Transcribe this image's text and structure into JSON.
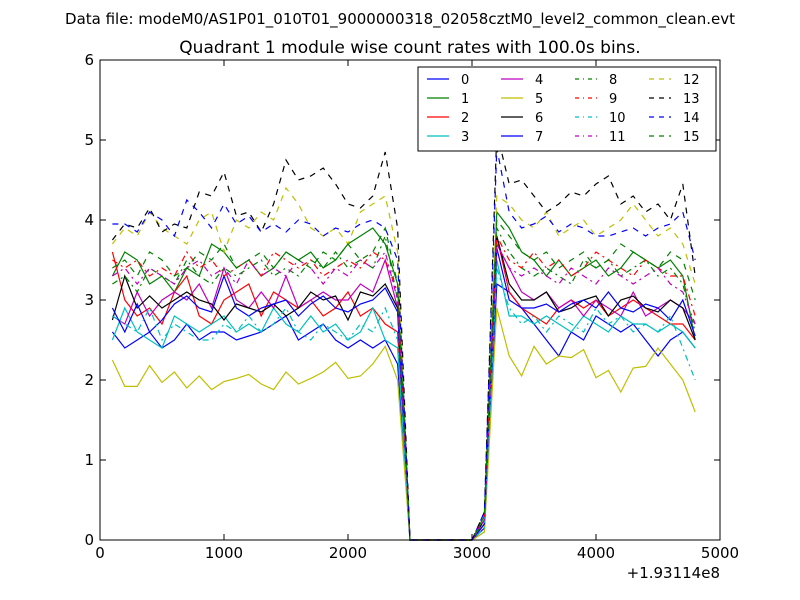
{
  "page": {
    "suptitle": "Data file: modeM0/AS1P01_010T01_9000000318_02058cztM0_level2_common_clean.evt"
  },
  "chart_data": {
    "type": "line",
    "title": "Quadrant 1 module wise count rates with 100.0s bins.",
    "xlabel": "",
    "ylabel": "",
    "x_offset_label": "+1.93114e8",
    "xlim": [
      0,
      5000
    ],
    "ylim": [
      0,
      6
    ],
    "xticks": [
      0,
      1000,
      2000,
      3000,
      4000,
      5000
    ],
    "yticks": [
      0,
      1,
      2,
      3,
      4,
      5,
      6
    ],
    "grid": false,
    "legend_position": "top-right",
    "x": [
      100,
      200,
      300,
      400,
      500,
      600,
      700,
      800,
      900,
      1000,
      1100,
      1200,
      1300,
      1400,
      1500,
      1600,
      1700,
      1800,
      1900,
      2000,
      2100,
      2200,
      2300,
      2400,
      2500,
      2600,
      2700,
      2800,
      2900,
      3000,
      3100,
      3200,
      3300,
      3400,
      3500,
      3600,
      3700,
      3800,
      3900,
      4000,
      4100,
      4200,
      4300,
      4400,
      4500,
      4600,
      4700,
      4800
    ],
    "series": [
      {
        "name": "0",
        "color": "#0000ff",
        "dash": "solid",
        "values": [
          2.6,
          2.4,
          2.5,
          2.6,
          2.4,
          2.5,
          2.7,
          2.5,
          2.6,
          2.6,
          2.5,
          2.55,
          2.6,
          2.7,
          2.8,
          2.5,
          2.6,
          2.7,
          2.5,
          2.4,
          2.5,
          2.4,
          2.5,
          2.2,
          0,
          0,
          0,
          0,
          0,
          0,
          0.15,
          3.2,
          3.1,
          2.9,
          2.7,
          2.5,
          2.3,
          2.6,
          2.5,
          2.8,
          2.7,
          2.6,
          2.7,
          2.5,
          2.3,
          2.5,
          2.6,
          2.4
        ]
      },
      {
        "name": "1",
        "color": "#008000",
        "dash": "solid",
        "values": [
          3.3,
          3.6,
          3.5,
          3.2,
          3.3,
          3.1,
          3.4,
          3.3,
          3.7,
          3.6,
          3.4,
          3.5,
          3.3,
          3.4,
          3.6,
          3.5,
          3.6,
          3.4,
          3.5,
          3.7,
          3.8,
          3.9,
          3.7,
          3.2,
          0,
          0,
          0,
          0,
          0,
          0,
          0.3,
          4.1,
          3.9,
          3.6,
          3.5,
          3.3,
          3.5,
          3.3,
          3.4,
          3.5,
          3.3,
          3.4,
          3.6,
          3.5,
          3.4,
          3.5,
          3.3,
          2.5
        ]
      },
      {
        "name": "2",
        "color": "#ff0000",
        "dash": "solid",
        "values": [
          3.6,
          3.0,
          2.8,
          2.9,
          2.7,
          3.1,
          3.3,
          2.8,
          2.7,
          3.0,
          3.1,
          3.2,
          2.8,
          3.1,
          3.0,
          2.9,
          3.0,
          2.8,
          2.9,
          3.1,
          2.8,
          2.9,
          2.7,
          2.6,
          0,
          0,
          0,
          0,
          0,
          0,
          0.2,
          3.8,
          3.1,
          2.9,
          2.8,
          2.7,
          2.9,
          3.0,
          2.9,
          3.0,
          2.8,
          2.9,
          3.0,
          2.9,
          2.8,
          2.7,
          2.7,
          2.5
        ]
      },
      {
        "name": "3",
        "color": "#00bfbf",
        "dash": "solid",
        "values": [
          2.5,
          2.9,
          2.6,
          2.5,
          2.4,
          2.8,
          2.7,
          2.6,
          2.7,
          2.8,
          2.6,
          2.7,
          2.6,
          2.9,
          2.7,
          2.6,
          2.8,
          2.6,
          2.7,
          2.5,
          2.6,
          2.9,
          2.5,
          2.4,
          0,
          0,
          0,
          0,
          0,
          0,
          0.1,
          3.5,
          2.8,
          2.8,
          2.7,
          2.8,
          2.7,
          2.6,
          2.8,
          2.7,
          2.6,
          2.8,
          2.7,
          2.7,
          2.6,
          2.7,
          2.6,
          2.4
        ]
      },
      {
        "name": "4",
        "color": "#bf00bf",
        "dash": "solid",
        "values": [
          2.8,
          2.7,
          3.1,
          2.8,
          3.0,
          3.1,
          3.0,
          3.2,
          2.9,
          3.4,
          3.0,
          2.9,
          3.1,
          2.9,
          3.3,
          2.9,
          3.0,
          3.1,
          3.0,
          3.0,
          3.2,
          3.1,
          3.5,
          2.9,
          0,
          0,
          0,
          0,
          0,
          0,
          0.2,
          3.7,
          3.4,
          3.1,
          3.0,
          3.1,
          2.9,
          3.0,
          2.8,
          3.0,
          2.9,
          2.8,
          3.1,
          2.8,
          2.9,
          3.0,
          2.9,
          2.7
        ]
      },
      {
        "name": "5",
        "color": "#bfbf00",
        "dash": "solid",
        "values": [
          2.25,
          1.92,
          1.92,
          2.18,
          1.97,
          2.1,
          1.9,
          2.05,
          1.88,
          1.98,
          2.02,
          2.07,
          1.95,
          1.88,
          2.1,
          1.95,
          2.02,
          2.1,
          2.22,
          2.02,
          2.05,
          2.2,
          2.42,
          2.0,
          0,
          0,
          0,
          0,
          0,
          0,
          0.1,
          2.9,
          2.3,
          2.05,
          2.42,
          2.2,
          2.3,
          2.28,
          2.38,
          2.03,
          2.12,
          1.85,
          2.15,
          2.17,
          2.4,
          2.2,
          2.0,
          1.6
        ]
      },
      {
        "name": "6",
        "color": "#000000",
        "dash": "solid",
        "values": [
          2.75,
          3.3,
          2.9,
          3.05,
          2.9,
          3.0,
          3.1,
          3.0,
          2.95,
          2.75,
          2.95,
          2.9,
          2.85,
          2.95,
          2.8,
          2.9,
          3.1,
          3.0,
          3.05,
          2.75,
          3.1,
          3.05,
          3.2,
          2.9,
          0,
          0,
          0,
          0,
          0,
          0,
          0.25,
          3.8,
          3.2,
          3.0,
          3.0,
          3.1,
          2.85,
          2.9,
          3.0,
          3.05,
          2.8,
          3.0,
          3.05,
          2.9,
          2.85,
          3.0,
          2.9,
          2.5
        ]
      },
      {
        "name": "7",
        "color": "#0000ff",
        "dash": "solid",
        "values": [
          2.9,
          2.6,
          2.95,
          2.6,
          2.75,
          2.95,
          3.05,
          2.9,
          2.85,
          3.3,
          2.9,
          2.8,
          2.9,
          2.95,
          3.0,
          2.8,
          2.95,
          3.05,
          2.9,
          2.85,
          2.95,
          3.0,
          3.15,
          2.85,
          0,
          0,
          0,
          0,
          0,
          0,
          0.2,
          3.65,
          3.0,
          2.9,
          2.9,
          2.95,
          2.85,
          2.95,
          3.0,
          2.9,
          3.1,
          2.9,
          2.85,
          2.95,
          2.9,
          2.75,
          3.0,
          2.55
        ]
      },
      {
        "name": "8",
        "color": "#008000",
        "dash": "dashdot",
        "values": [
          3.2,
          3.3,
          3.1,
          3.4,
          3.3,
          3.2,
          3.5,
          3.3,
          3.2,
          3.4,
          3.3,
          3.4,
          3.5,
          3.3,
          3.4,
          3.3,
          3.5,
          3.4,
          3.6,
          3.4,
          3.5,
          3.4,
          3.8,
          3.0,
          0,
          0,
          0,
          0,
          0,
          0,
          0.25,
          3.9,
          3.6,
          3.4,
          3.3,
          3.4,
          3.3,
          3.2,
          3.5,
          3.4,
          3.5,
          3.3,
          3.4,
          3.5,
          3.3,
          3.4,
          3.2,
          2.6
        ]
      },
      {
        "name": "9",
        "color": "#ff0000",
        "dash": "dashdot",
        "values": [
          3.5,
          3.4,
          3.5,
          3.3,
          3.4,
          3.3,
          3.6,
          3.4,
          3.5,
          3.3,
          3.4,
          3.5,
          3.3,
          3.6,
          3.5,
          3.4,
          3.5,
          3.3,
          3.4,
          3.5,
          3.4,
          3.6,
          3.5,
          3.1,
          0,
          0,
          0,
          0,
          0,
          0,
          0.3,
          3.8,
          3.5,
          3.4,
          3.6,
          3.4,
          3.5,
          3.3,
          3.4,
          3.6,
          3.5,
          3.4,
          3.3,
          3.5,
          3.4,
          3.3,
          3.3,
          2.8
        ]
      },
      {
        "name": "10",
        "color": "#00bfbf",
        "dash": "dashdot",
        "values": [
          2.8,
          2.7,
          2.6,
          2.9,
          2.5,
          2.7,
          2.6,
          2.5,
          2.5,
          2.7,
          2.6,
          2.8,
          2.6,
          2.7,
          2.9,
          2.6,
          2.5,
          2.7,
          2.6,
          2.5,
          2.7,
          2.6,
          2.9,
          2.5,
          0,
          0,
          0,
          0,
          0,
          0,
          0.15,
          3.4,
          2.9,
          2.7,
          2.8,
          2.6,
          2.8,
          2.7,
          2.6,
          2.9,
          2.7,
          2.8,
          2.6,
          2.7,
          2.6,
          2.8,
          2.4,
          2.0
        ]
      },
      {
        "name": "11",
        "color": "#bf00bf",
        "dash": "dashdot",
        "values": [
          3.3,
          3.4,
          3.2,
          3.4,
          3.3,
          3.2,
          3.4,
          3.5,
          3.3,
          3.4,
          3.2,
          3.5,
          3.3,
          3.4,
          3.3,
          3.5,
          3.4,
          3.2,
          3.4,
          3.3,
          3.5,
          3.4,
          3.6,
          3.0,
          0,
          0,
          0,
          0,
          0,
          0,
          0.25,
          3.7,
          3.4,
          3.3,
          3.4,
          3.3,
          3.2,
          3.4,
          3.3,
          3.2,
          3.4,
          3.3,
          3.2,
          3.3,
          3.4,
          3.2,
          3.1,
          2.7
        ]
      },
      {
        "name": "12",
        "color": "#bfbf00",
        "dash": "dashed",
        "values": [
          3.7,
          3.9,
          3.8,
          4.1,
          3.9,
          3.8,
          3.7,
          4.0,
          4.1,
          3.6,
          4.0,
          3.9,
          4.1,
          4.0,
          4.4,
          4.2,
          3.9,
          3.8,
          3.9,
          3.7,
          4.1,
          4.2,
          4.3,
          3.6,
          0,
          0,
          0,
          0,
          0,
          0,
          0.3,
          4.3,
          4.2,
          4.0,
          3.9,
          4.1,
          3.8,
          3.9,
          4.0,
          3.8,
          3.9,
          4.0,
          4.2,
          4.0,
          3.8,
          3.9,
          3.7,
          3.2
        ]
      },
      {
        "name": "13",
        "color": "#000000",
        "dash": "dashed",
        "values": [
          3.75,
          3.95,
          3.9,
          4.15,
          3.85,
          3.95,
          3.9,
          4.35,
          4.3,
          4.6,
          4.05,
          4.1,
          3.85,
          4.2,
          4.75,
          4.5,
          4.55,
          4.65,
          4.45,
          4.2,
          4.15,
          4.3,
          4.85,
          3.9,
          0,
          0,
          0,
          0,
          0,
          0,
          0.35,
          5.1,
          4.45,
          4.5,
          4.3,
          4.1,
          4.2,
          4.35,
          4.3,
          4.45,
          4.55,
          4.2,
          4.3,
          4.1,
          4.2,
          4.0,
          4.45,
          3.3
        ]
      },
      {
        "name": "14",
        "color": "#0000ff",
        "dash": "dashed",
        "values": [
          3.95,
          3.95,
          3.85,
          4.1,
          4.0,
          3.8,
          4.25,
          4.1,
          3.9,
          4.2,
          3.95,
          4.05,
          3.85,
          3.95,
          3.85,
          4.0,
          3.95,
          3.8,
          3.9,
          3.85,
          3.95,
          4.0,
          3.9,
          3.5,
          0,
          0,
          0,
          0,
          0,
          0,
          0.35,
          4.9,
          4.1,
          3.9,
          3.95,
          4.05,
          3.85,
          3.95,
          3.9,
          3.8,
          3.8,
          3.85,
          3.9,
          3.8,
          3.9,
          3.95,
          4.1,
          3.5
        ]
      },
      {
        "name": "15",
        "color": "#008000",
        "dash": "dashed",
        "values": [
          3.4,
          3.5,
          3.3,
          3.6,
          3.5,
          3.3,
          3.4,
          3.6,
          3.5,
          3.7,
          3.4,
          3.5,
          3.6,
          3.4,
          3.6,
          3.5,
          3.4,
          3.6,
          3.5,
          3.7,
          3.5,
          3.6,
          3.9,
          3.2,
          0,
          0,
          0,
          0,
          0,
          0,
          0.3,
          4.0,
          3.8,
          3.6,
          3.5,
          3.6,
          3.4,
          3.5,
          3.6,
          3.4,
          3.5,
          3.7,
          3.6,
          3.5,
          3.4,
          3.6,
          3.5,
          3.0
        ]
      }
    ]
  }
}
